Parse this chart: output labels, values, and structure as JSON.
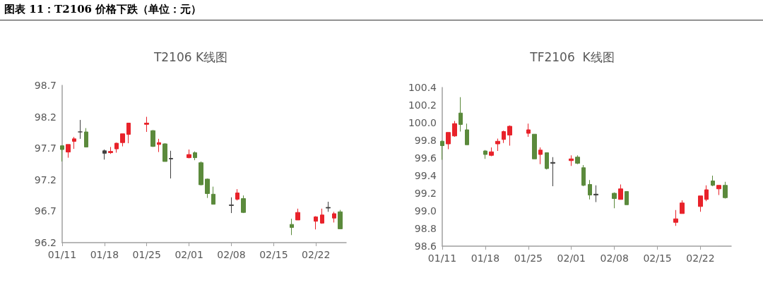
{
  "chart_data": [
    {
      "type": "candlestick",
      "title": "T2106 K线图",
      "annotations": [
        "图表 11：T2106 价格下跌（单位：元）"
      ],
      "x": [
        "--01-11",
        "--01-12",
        "--01-13",
        "--01-14",
        "--01-15",
        "--01-18",
        "--01-19",
        "--01-20",
        "--01-21",
        "--01-22",
        "--01-25",
        "--01-26",
        "--01-27",
        "--01-28",
        "--01-29",
        "--02-01",
        "--02-02",
        "--02-03",
        "--02-04",
        "--02-05",
        "--02-08",
        "--02-09",
        "--02-10",
        "--02-18",
        "--02-19",
        "--02-22",
        "--02-23",
        "--02-24",
        "--02-25",
        "--02-26"
      ],
      "ohlc": [
        [
          97.74,
          97.74,
          97.49,
          97.68
        ],
        [
          97.64,
          97.76,
          97.55,
          97.76
        ],
        [
          97.81,
          97.88,
          97.69,
          97.85
        ],
        [
          97.96,
          98.15,
          97.85,
          97.96
        ],
        [
          97.96,
          98.02,
          97.72,
          97.72
        ],
        [
          97.66,
          97.68,
          97.52,
          97.62
        ],
        [
          97.63,
          97.72,
          97.61,
          97.65
        ],
        [
          97.69,
          97.79,
          97.63,
          97.78
        ],
        [
          97.79,
          97.93,
          97.73,
          97.93
        ],
        [
          97.92,
          98.1,
          97.78,
          98.1
        ],
        [
          98.08,
          98.2,
          97.96,
          98.1
        ],
        [
          97.98,
          97.99,
          97.72,
          97.73
        ],
        [
          97.76,
          97.85,
          97.64,
          97.79
        ],
        [
          97.77,
          97.78,
          97.49,
          97.49
        ],
        [
          97.54,
          97.66,
          97.22,
          97.53
        ],
        [
          97.55,
          97.68,
          97.54,
          97.6
        ],
        [
          97.63,
          97.65,
          97.51,
          97.55
        ],
        [
          97.47,
          97.49,
          97.11,
          97.12
        ],
        [
          97.21,
          97.22,
          96.91,
          96.98
        ],
        [
          96.97,
          97.09,
          96.81,
          96.81
        ],
        [
          96.8,
          96.92,
          96.67,
          96.79
        ],
        [
          96.89,
          97.05,
          96.87,
          96.99
        ],
        [
          96.9,
          96.95,
          96.67,
          96.68
        ],
        [
          96.49,
          96.58,
          96.32,
          96.44
        ],
        [
          96.56,
          96.74,
          96.56,
          96.68
        ],
        [
          96.54,
          96.62,
          96.41,
          96.61
        ],
        [
          96.51,
          96.74,
          96.5,
          96.64
        ],
        [
          96.76,
          96.85,
          96.69,
          96.75
        ],
        [
          96.59,
          96.69,
          96.52,
          96.66
        ],
        [
          96.69,
          96.72,
          96.42,
          96.42
        ]
      ],
      "colors": [
        "#5b8a3c",
        "#e8222a",
        "#e8222a",
        "#404040",
        "#5b8a3c",
        "#404040",
        "#e8222a",
        "#e8222a",
        "#e8222a",
        "#e8222a",
        "#e8222a",
        "#5b8a3c",
        "#e8222a",
        "#5b8a3c",
        "#404040",
        "#e8222a",
        "#5b8a3c",
        "#5b8a3c",
        "#5b8a3c",
        "#5b8a3c",
        "#404040",
        "#e8222a",
        "#5b8a3c",
        "#5b8a3c",
        "#e8222a",
        "#e8222a",
        "#e8222a",
        "#404040",
        "#e8222a",
        "#5b8a3c"
      ],
      "xlim": [
        "--01-11",
        "--02-27"
      ],
      "xticks": [
        {
          "value": "--01-11",
          "label": "01/11"
        },
        {
          "value": "--01-18",
          "label": "01/18"
        },
        {
          "value": "--01-25",
          "label": "01/25"
        },
        {
          "value": "--02-01",
          "label": "02/01"
        },
        {
          "value": "--02-08",
          "label": "02/08"
        },
        {
          "value": "--02-15",
          "label": "02/15"
        },
        {
          "value": "--02-22",
          "label": "02/22"
        }
      ],
      "ylim": [
        96.2,
        98.7
      ],
      "yticks": [
        96.2,
        96.7,
        97.2,
        97.7,
        98.2,
        98.7
      ]
    },
    {
      "type": "candlestick",
      "title": "TF2106  K线图",
      "x": [
        "--01-11",
        "--01-12",
        "--01-13",
        "--01-14",
        "--01-15",
        "--01-18",
        "--01-19",
        "--01-20",
        "--01-21",
        "--01-22",
        "--01-25",
        "--01-26",
        "--01-27",
        "--01-28",
        "--01-29",
        "--02-01",
        "--02-02",
        "--02-03",
        "--02-04",
        "--02-05",
        "--02-08",
        "--02-09",
        "--02-10",
        "--02-18",
        "--02-19",
        "--02-22",
        "--02-23",
        "--02-24",
        "--02-25",
        "--02-26"
      ],
      "ohlc": [
        [
          99.79,
          99.8,
          99.58,
          99.74
        ],
        [
          99.76,
          99.89,
          99.7,
          99.89
        ],
        [
          99.85,
          100.02,
          99.84,
          99.99
        ],
        [
          100.11,
          100.29,
          99.9,
          99.98
        ],
        [
          99.92,
          99.99,
          99.75,
          99.75
        ],
        [
          99.68,
          99.69,
          99.59,
          99.64
        ],
        [
          99.63,
          99.72,
          99.62,
          99.67
        ],
        [
          99.76,
          99.82,
          99.68,
          99.79
        ],
        [
          99.81,
          99.91,
          99.77,
          99.9
        ],
        [
          99.86,
          99.97,
          99.74,
          99.96
        ],
        [
          99.88,
          99.99,
          99.84,
          99.92
        ],
        [
          99.87,
          99.87,
          99.59,
          99.59
        ],
        [
          99.64,
          99.72,
          99.53,
          99.69
        ],
        [
          99.66,
          99.66,
          99.47,
          99.48
        ],
        [
          99.55,
          99.61,
          99.28,
          99.54
        ],
        [
          99.57,
          99.63,
          99.51,
          99.59
        ],
        [
          99.61,
          99.63,
          99.53,
          99.54
        ],
        [
          99.49,
          99.52,
          99.28,
          99.29
        ],
        [
          99.3,
          99.35,
          99.13,
          99.18
        ],
        [
          99.19,
          99.29,
          99.1,
          99.18
        ],
        [
          99.2,
          99.21,
          99.03,
          99.14
        ],
        [
          99.13,
          99.3,
          99.13,
          99.25
        ],
        [
          99.22,
          99.22,
          99.07,
          99.07
        ],
        [
          98.87,
          99.01,
          98.83,
          98.91
        ],
        [
          98.97,
          99.12,
          98.97,
          99.09
        ],
        [
          99.05,
          99.17,
          98.99,
          99.17
        ],
        [
          99.13,
          99.29,
          99.11,
          99.24
        ],
        [
          99.34,
          99.4,
          99.28,
          99.29
        ],
        [
          99.25,
          99.29,
          99.18,
          99.29
        ],
        [
          99.29,
          99.33,
          99.14,
          99.15
        ]
      ],
      "colors": [
        "#5b8a3c",
        "#e8222a",
        "#e8222a",
        "#5b8a3c",
        "#5b8a3c",
        "#5b8a3c",
        "#e8222a",
        "#e8222a",
        "#e8222a",
        "#e8222a",
        "#e8222a",
        "#5b8a3c",
        "#e8222a",
        "#5b8a3c",
        "#404040",
        "#e8222a",
        "#5b8a3c",
        "#5b8a3c",
        "#5b8a3c",
        "#404040",
        "#5b8a3c",
        "#e8222a",
        "#5b8a3c",
        "#e8222a",
        "#e8222a",
        "#e8222a",
        "#e8222a",
        "#5b8a3c",
        "#e8222a",
        "#5b8a3c"
      ],
      "xlim": [
        "--01-11",
        "--02-27"
      ],
      "xticks": [
        {
          "value": "--01-11",
          "label": "01/11"
        },
        {
          "value": "--01-18",
          "label": "01/18"
        },
        {
          "value": "--01-25",
          "label": "01/25"
        },
        {
          "value": "--02-01",
          "label": "02/01"
        },
        {
          "value": "--02-08",
          "label": "02/08"
        },
        {
          "value": "--02-15",
          "label": "02/15"
        },
        {
          "value": "--02-22",
          "label": "02/22"
        }
      ],
      "ylim": [
        98.6,
        100.4
      ],
      "yticks": [
        {
          "value": 98.6,
          "label": "98.6"
        },
        {
          "value": 98.8,
          "label": "98.8"
        },
        {
          "value": 99,
          "label": "99.0"
        },
        {
          "value": 99.2,
          "label": "99.2"
        },
        {
          "value": 99.4,
          "label": "99.4"
        },
        {
          "value": 99.6,
          "label": "99.6"
        },
        {
          "value": 99.8,
          "label": "99.8"
        },
        {
          "value": 100,
          "label": "100.0"
        },
        {
          "value": 100.2,
          "label": "100.2"
        },
        {
          "value": 100.4,
          "label": "100.4"
        }
      ]
    }
  ]
}
